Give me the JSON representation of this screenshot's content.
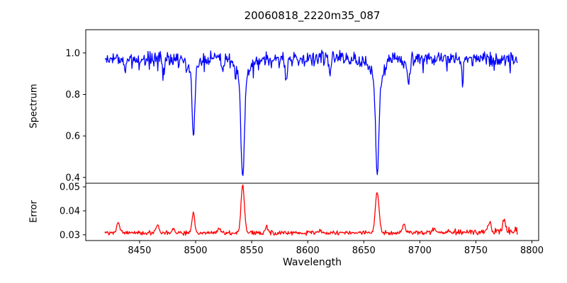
{
  "figure": {
    "background": "#ffffff",
    "axis_color": "#000000"
  },
  "chart_data": {
    "type": "line",
    "title": "20060818_2220m35_087",
    "xlabel": "Wavelength",
    "grid": false,
    "legend": false,
    "x_axis": {
      "lim": [
        8402,
        8806
      ],
      "tick_values": [
        8450,
        8500,
        8550,
        8600,
        8650,
        8700,
        8750,
        8800
      ],
      "tick_labels": [
        "8450",
        "8500",
        "8550",
        "8600",
        "8650",
        "8700",
        "8750",
        "8800"
      ]
    },
    "subplots": [
      {
        "name": "spectrum",
        "ylabel": "Spectrum",
        "ylim": [
          0.372,
          1.112
        ],
        "tick_values": [
          0.4,
          0.6,
          0.8,
          1.0
        ],
        "tick_labels": [
          "0.4",
          "0.6",
          "0.8",
          "1.0"
        ],
        "series": {
          "name": "spectrum",
          "color": "#0000ff",
          "x_range": [
            8419,
            8787
          ],
          "n_points": 640,
          "continuum": 0.972,
          "noise_amp": 0.042,
          "dip_prob": 0.08,
          "dip_noise": 0.06,
          "absorption_lines": [
            {
              "center": 8498,
              "min_flux": 0.58,
              "core_depth": 0.33,
              "core_width": 1.1,
              "wing_depth": 0.062,
              "wing_width": 4.0
            },
            {
              "center": 8542,
              "min_flux": 0.4,
              "core_depth": 0.47,
              "core_width": 1.4,
              "wing_depth": 0.104,
              "wing_width": 5.5
            },
            {
              "center": 8662,
              "min_flux": 0.41,
              "core_depth": 0.46,
              "core_width": 1.4,
              "wing_depth": 0.102,
              "wing_width": 5.5
            }
          ],
          "minor_dips": [
            [
              8437,
              0.07,
              0.8
            ],
            [
              8471,
              0.08,
              0.9
            ],
            [
              8524,
              0.07,
              0.8
            ],
            [
              8581,
              0.09,
              0.9
            ],
            [
              8620,
              0.06,
              0.8
            ],
            [
              8690,
              0.11,
              1.0
            ],
            [
              8738,
              0.1,
              0.9
            ]
          ]
        }
      },
      {
        "name": "error",
        "ylabel": "Error",
        "ylim": [
          0.0276,
          0.0515
        ],
        "tick_values": [
          0.03,
          0.04,
          0.05
        ],
        "tick_labels": [
          "0.03",
          "0.04",
          "0.05"
        ],
        "series": {
          "name": "error",
          "color": "#ff0000",
          "x_range": [
            8419,
            8787
          ],
          "n_points": 640,
          "baseline": 0.0308,
          "noise_amp": 0.0011,
          "spikes": [
            [
              8431,
              0.0044,
              1.3
            ],
            [
              8466,
              0.0034,
              1.3
            ],
            [
              8480,
              0.0015,
              1.0
            ],
            [
              8498,
              0.0088,
              1.2
            ],
            [
              8521,
              0.0022,
              1.2
            ],
            [
              8542,
              0.0196,
              1.5
            ],
            [
              8563,
              0.0028,
              1.2
            ],
            [
              8611,
              0.0015,
              1.2
            ],
            [
              8662,
              0.0176,
              1.6
            ],
            [
              8686,
              0.0032,
              1.3
            ],
            [
              8713,
              0.0018,
              1.2
            ],
            [
              8762,
              0.0042,
              1.2
            ],
            [
              8775,
              0.0048,
              1.1
            ]
          ]
        }
      }
    ],
    "key_points": {
      "absorption_features": [
        {
          "wavelength": 8498,
          "spectrum_min": 0.58,
          "error_peak": 0.0395
        },
        {
          "wavelength": 8542,
          "spectrum_min": 0.4,
          "error_peak": 0.0503
        },
        {
          "wavelength": 8662,
          "spectrum_min": 0.41,
          "error_peak": 0.0483
        }
      ],
      "spectrum_continuum_level": 0.97,
      "error_baseline_level": 0.031
    }
  }
}
